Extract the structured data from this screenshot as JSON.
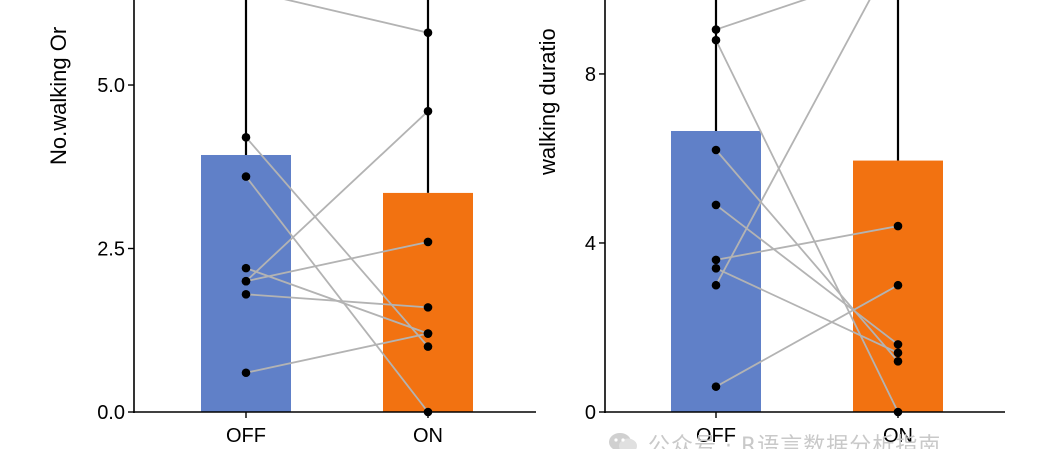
{
  "watermark": {
    "text": "公众号 · R语言数据分析指南"
  },
  "chart_data": [
    {
      "type": "bar",
      "categories": [
        "OFF",
        "ON"
      ],
      "bar_colors": [
        "#6080C8",
        "#F27211"
      ],
      "point_color": "#000000",
      "line_color": "#B3B3B3",
      "axis_color": "#000000",
      "values": [
        3.93,
        3.35
      ],
      "error_upper": [
        6.6,
        6.6
      ],
      "ylabel": "No.walking Or",
      "xlabel": "",
      "ylim": [
        0,
        6.3
      ],
      "yticks": [
        0.0,
        2.5,
        5.0
      ],
      "ytick_labels": [
        "0.0",
        "2.5",
        "5.0"
      ],
      "pairs": [
        {
          "off": 6.45,
          "on": 5.8
        },
        {
          "off": 4.2,
          "on": 1.0
        },
        {
          "off": 3.6,
          "on": 0.0
        },
        {
          "off": 2.2,
          "on": 1.2
        },
        {
          "off": 2.0,
          "on": 2.6
        },
        {
          "off": 2.0,
          "on": 4.6
        },
        {
          "off": 1.8,
          "on": 1.6
        },
        {
          "off": 0.6,
          "on": 1.2
        }
      ]
    },
    {
      "type": "bar",
      "categories": [
        "OFF",
        "ON"
      ],
      "bar_colors": [
        "#6080C8",
        "#F27211"
      ],
      "point_color": "#000000",
      "line_color": "#B3B3B3",
      "axis_color": "#000000",
      "values": [
        6.65,
        5.95
      ],
      "error_upper": [
        10.0,
        10.0
      ],
      "ylabel": "walking duratio",
      "xlabel": "",
      "ylim": [
        0,
        9.75
      ],
      "yticks": [
        0,
        4,
        8
      ],
      "ytick_labels": [
        "0",
        "4",
        "8"
      ],
      "pairs": [
        {
          "off": 9.05,
          "on": 10.5
        },
        {
          "off": 8.8,
          "on": 0.0
        },
        {
          "off": 6.2,
          "on": 1.2
        },
        {
          "off": 4.9,
          "on": 1.6
        },
        {
          "off": 3.6,
          "on": 4.4
        },
        {
          "off": 3.4,
          "on": 1.4
        },
        {
          "off": 3.0,
          "on": 11.0
        },
        {
          "off": 0.6,
          "on": 3.0
        }
      ]
    }
  ]
}
